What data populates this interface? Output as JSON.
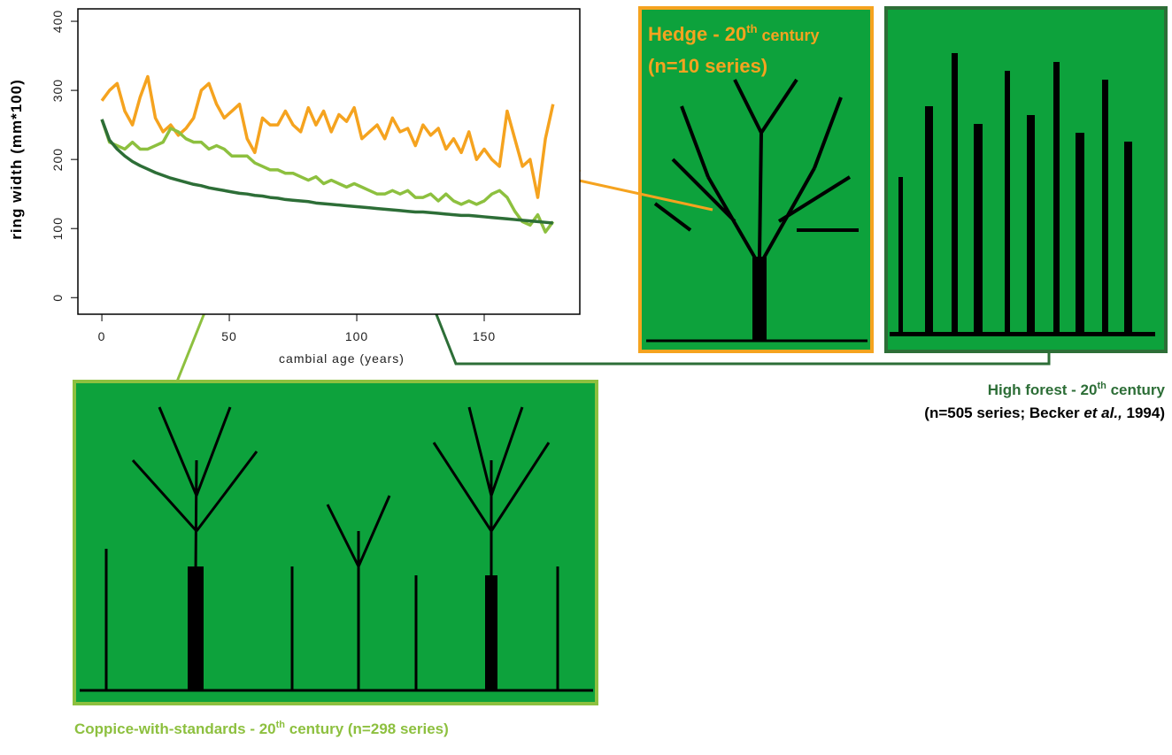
{
  "chart_data": {
    "type": "line",
    "xlabel": "cambial age (years)",
    "ylabel": "ring width (mm*100)",
    "xlim": [
      -9.4,
      187.5
    ],
    "ylim": [
      -24,
      418
    ],
    "xticks": [
      0,
      50,
      100,
      150
    ],
    "yticks": [
      0,
      100,
      200,
      300,
      400
    ],
    "x": [
      0,
      3,
      6,
      9,
      12,
      15,
      18,
      21,
      24,
      27,
      30,
      33,
      36,
      39,
      42,
      45,
      48,
      51,
      54,
      57,
      60,
      63,
      66,
      69,
      72,
      75,
      78,
      81,
      84,
      87,
      90,
      93,
      96,
      99,
      102,
      105,
      108,
      111,
      114,
      117,
      120,
      123,
      126,
      129,
      132,
      135,
      138,
      141,
      144,
      147,
      150,
      153,
      156,
      159,
      162,
      165,
      168,
      171,
      174,
      177
    ],
    "series": [
      {
        "color": "#f5a31f",
        "values": [
          285,
          300,
          310,
          270,
          250,
          290,
          320,
          260,
          240,
          250,
          235,
          245,
          260,
          300,
          310,
          280,
          260,
          270,
          280,
          230,
          210,
          260,
          250,
          250,
          270,
          250,
          240,
          275,
          250,
          270,
          240,
          265,
          255,
          275,
          230,
          240,
          250,
          230,
          260,
          240,
          245,
          220,
          250,
          235,
          245,
          215,
          230,
          210,
          240,
          200,
          215,
          200,
          190,
          270,
          230,
          190,
          200,
          145,
          230,
          280
        ]
      },
      {
        "color": "#8dc03f",
        "values": [
          258,
          225,
          220,
          215,
          225,
          215,
          215,
          220,
          225,
          245,
          240,
          230,
          225,
          225,
          215,
          220,
          215,
          205,
          205,
          205,
          195,
          190,
          185,
          185,
          180,
          180,
          175,
          170,
          175,
          165,
          170,
          165,
          160,
          165,
          160,
          155,
          150,
          150,
          155,
          150,
          155,
          145,
          145,
          150,
          140,
          150,
          140,
          135,
          140,
          135,
          140,
          150,
          155,
          145,
          125,
          110,
          105,
          120,
          95,
          110
        ]
      },
      {
        "color": "#2d6e37",
        "values": [
          258,
          228,
          215,
          205,
          197,
          191,
          186,
          181,
          177,
          173,
          170,
          167,
          164,
          162,
          159,
          157,
          155,
          153,
          151,
          150,
          148,
          147,
          145,
          144,
          142,
          141,
          140,
          139,
          137,
          136,
          135,
          134,
          133,
          132,
          131,
          130,
          129,
          128,
          127,
          126,
          125,
          124,
          124,
          123,
          122,
          121,
          120,
          119,
          119,
          118,
          117,
          116,
          115,
          114,
          113,
          112,
          111,
          110,
          109,
          108
        ]
      }
    ],
    "captions": {
      "hedge": {
        "a": "Hedge - 20",
        "sup": "th",
        "b": " century",
        "c": "(n=10 series)"
      },
      "high_forest": {
        "a": "High forest - 20",
        "sup": "th",
        "b": " century",
        "c": "(n=505 series; Becker ",
        "d": "et al.,",
        "e": " 1994)"
      },
      "coppice": {
        "a": "Coppice-with-standards - 20",
        "sup": "th",
        "b": " century (n=298 series)"
      }
    }
  }
}
